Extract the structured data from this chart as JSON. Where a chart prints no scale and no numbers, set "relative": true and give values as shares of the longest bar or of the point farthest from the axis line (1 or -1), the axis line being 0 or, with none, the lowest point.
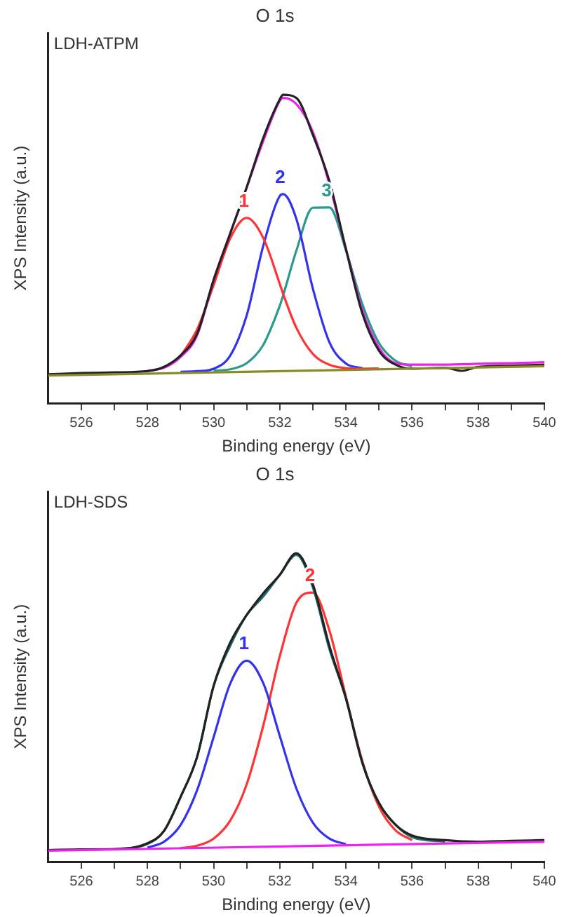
{
  "chart_data": [
    {
      "type": "line",
      "title": "O 1s",
      "xlabel": "Binding energy (eV)",
      "ylabel": "XPS Intensity (a.u.)",
      "annotations": [
        "LDH-ATPM"
      ],
      "relative": true,
      "grid": false,
      "legend": false,
      "marker": "none",
      "xlim": [
        525,
        540
      ],
      "xticks": [
        526,
        {
          "value": 527,
          "label": null
        },
        528,
        {
          "value": 529,
          "label": null
        },
        530,
        {
          "value": 531,
          "label": null
        },
        532,
        {
          "value": 533,
          "label": null
        },
        534,
        {
          "value": 535,
          "label": null
        },
        536,
        {
          "value": 537,
          "label": null
        },
        538,
        {
          "value": 539,
          "label": null
        },
        540
      ],
      "x": [
        528,
        528.5,
        529,
        529.5,
        530,
        530.5,
        531,
        531.5,
        532,
        532.1,
        532.5,
        533,
        533.5,
        534,
        534.5,
        535,
        535.5,
        536,
        537,
        538,
        539,
        540
      ],
      "series": [
        {
          "color": "#8a8a2a",
          "x": [
            525,
            540
          ],
          "values": [
            0.09,
            0.12
          ]
        },
        {
          "color": "#222222",
          "x": [
            525,
            526,
            527,
            528,
            528.5,
            529,
            529.5,
            530,
            530.5,
            531,
            531.5,
            532,
            532.1,
            532.5,
            533,
            533.5,
            534,
            534.5,
            535,
            535.5,
            536,
            537,
            537.5,
            538,
            539,
            540
          ],
          "values": [
            0.094,
            0.098,
            0.1,
            0.104,
            0.118,
            0.155,
            0.225,
            0.4,
            0.55,
            0.7,
            0.86,
            0.985,
            1.0,
            0.99,
            0.87,
            0.72,
            0.5,
            0.29,
            0.17,
            0.125,
            0.112,
            0.115,
            0.105,
            0.118,
            0.122,
            0.125
          ]
        },
        {
          "color": "#ee22ee",
          "values": [
            0.105,
            0.115,
            0.15,
            0.22,
            0.4,
            0.55,
            0.7,
            0.85,
            0.98,
            0.99,
            0.97,
            0.88,
            0.71,
            0.5,
            0.3,
            0.18,
            0.13,
            0.125,
            0.125,
            0.128,
            0.13,
            0.133
          ]
        },
        {
          "name": "1",
          "color": "#ff3333",
          "values": [
            null,
            null,
            0.152,
            0.239,
            0.383,
            0.534,
            0.601,
            0.536,
            0.387,
            0.355,
            0.245,
            0.16,
            0.125,
            0.114,
            0.112,
            0.113,
            null,
            null,
            null,
            null,
            null,
            null
          ]
        },
        {
          "name": "2",
          "color": "#3333ee",
          "values": [
            null,
            null,
            0.102,
            0.104,
            0.112,
            0.154,
            0.285,
            0.51,
            0.672,
            0.678,
            0.598,
            0.372,
            0.198,
            0.129,
            0.114,
            null,
            null,
            null,
            null,
            null,
            null,
            null
          ]
        },
        {
          "name": "3",
          "color": "#2a9a8a",
          "values": [
            null,
            null,
            null,
            null,
            0.106,
            0.11,
            0.13,
            0.189,
            0.316,
            0.349,
            0.494,
            0.634,
            0.635,
            0.496,
            0.32,
            0.195,
            0.138,
            0.12,
            null,
            null,
            null,
            null
          ]
        }
      ]
    },
    {
      "type": "line",
      "title": "O 1s",
      "xlabel": "Binding energy (eV)",
      "ylabel": "XPS Intensity (a.u.)",
      "annotations": [
        "LDH-SDS"
      ],
      "relative": true,
      "grid": false,
      "legend": false,
      "marker": "none",
      "xlim": [
        525,
        540
      ],
      "xticks": [
        526,
        {
          "value": 527,
          "label": null
        },
        528,
        {
          "value": 529,
          "label": null
        },
        530,
        {
          "value": 531,
          "label": null
        },
        532,
        {
          "value": 533,
          "label": null
        },
        534,
        {
          "value": 535,
          "label": null
        },
        536,
        {
          "value": 537,
          "label": null
        },
        538,
        {
          "value": 539,
          "label": null
        },
        540
      ],
      "x": [
        525,
        526,
        527,
        528,
        528.5,
        529,
        529.5,
        530,
        530.5,
        531,
        531.5,
        532,
        532.5,
        533,
        533.5,
        534,
        534.5,
        535,
        535.5,
        536,
        537,
        538,
        539,
        540
      ],
      "series": [
        {
          "color": "#ee22ee",
          "x": [
            525,
            540
          ],
          "values": [
            0.036,
            0.065
          ]
        },
        {
          "color": "#222222",
          "values": [
            0.038,
            0.04,
            0.041,
            0.06,
            0.1,
            0.21,
            0.34,
            0.57,
            0.71,
            0.8,
            0.87,
            0.93,
            1.0,
            0.9,
            0.7,
            0.53,
            0.32,
            0.19,
            0.12,
            0.085,
            0.07,
            0.065,
            0.068,
            0.07
          ]
        },
        {
          "color": "#1f6f6a",
          "values": [
            null,
            null,
            0.04,
            0.058,
            0.1,
            0.21,
            0.34,
            0.57,
            0.7,
            0.8,
            0.86,
            0.93,
            0.995,
            0.89,
            0.69,
            0.53,
            0.32,
            0.19,
            0.12,
            0.08,
            0.065,
            null,
            null,
            null
          ]
        },
        {
          "name": "1",
          "color": "#3333ee",
          "values": [
            null,
            null,
            null,
            0.046,
            0.065,
            0.119,
            0.232,
            0.404,
            0.577,
            0.652,
            0.579,
            0.408,
            0.238,
            0.127,
            0.075,
            0.057,
            null,
            null,
            null,
            null,
            null,
            null,
            null,
            null
          ]
        },
        {
          "name": "2",
          "color": "#ff3333",
          "values": [
            null,
            null,
            null,
            null,
            null,
            0.044,
            0.052,
            0.075,
            0.133,
            0.251,
            0.441,
            0.666,
            0.839,
            0.873,
            0.75,
            0.535,
            0.325,
            0.179,
            0.102,
            0.07,
            null,
            null,
            null,
            null
          ]
        }
      ]
    }
  ]
}
